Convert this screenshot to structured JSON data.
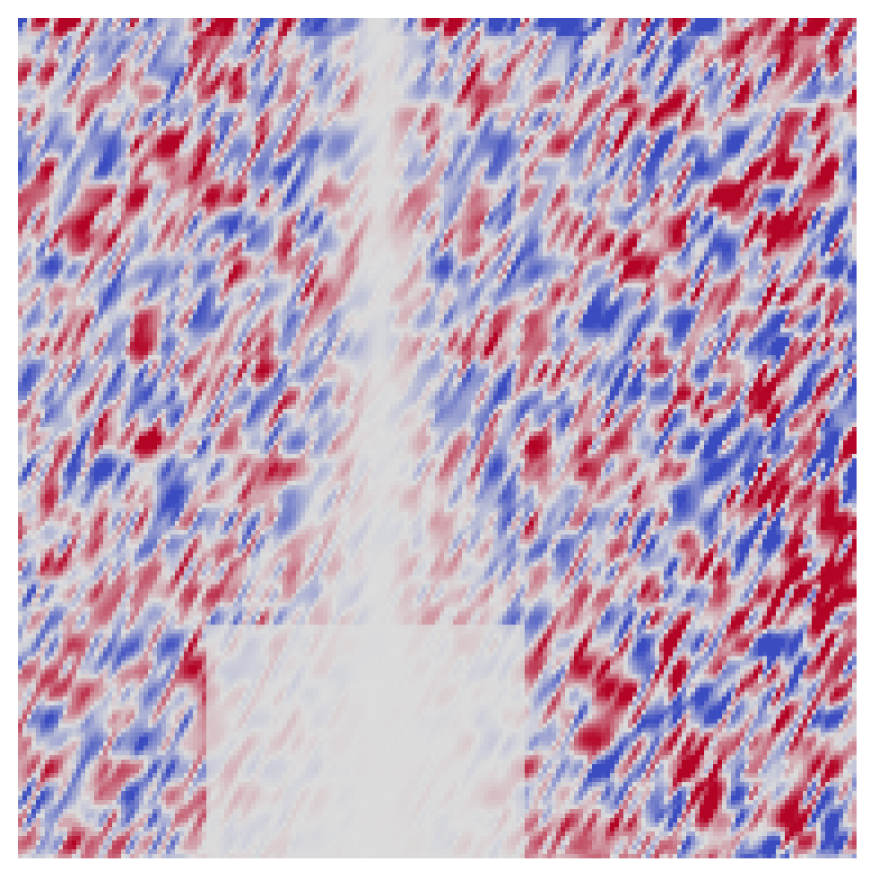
{
  "image": {
    "kind": "diverging-heatmap",
    "colormap": "coolwarm",
    "neutral_color": "#dcdcdc",
    "positive_color": "#b40426",
    "negative_color": "#3b4cc0",
    "axes_visible": false,
    "colorbar_visible": false
  }
}
